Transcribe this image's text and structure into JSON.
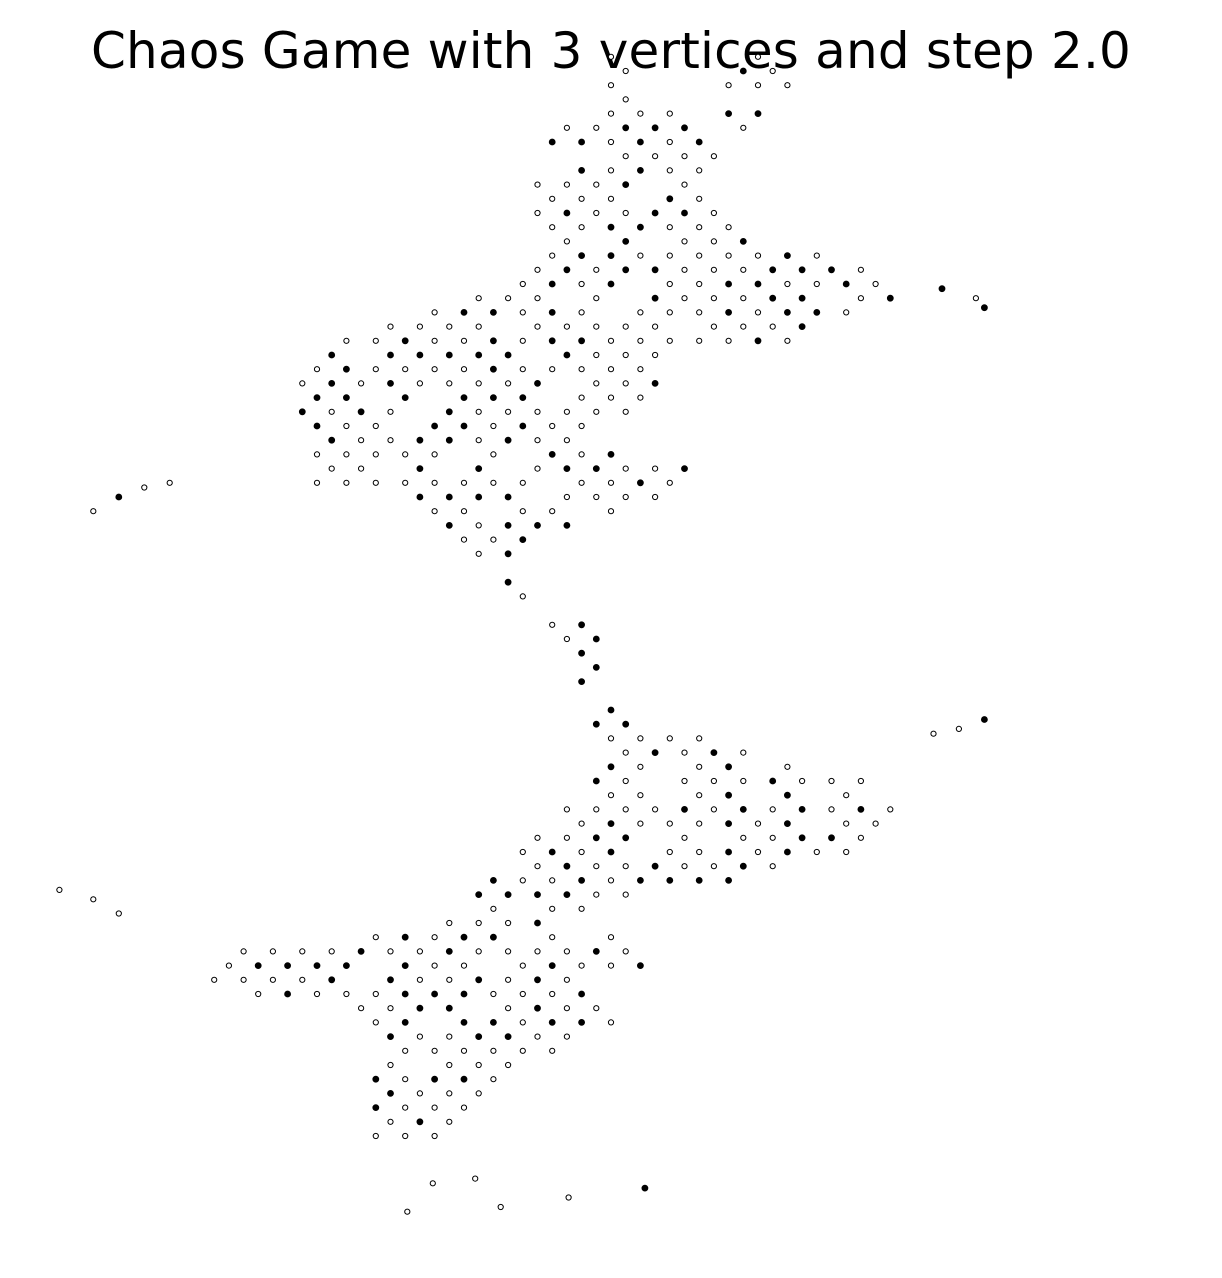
{
  "chart_data": {
    "type": "scatter",
    "title": "Chaos Game with 3 vertices and step 2.0",
    "xlabel": "",
    "ylabel": "",
    "axes_visible": false,
    "grid": false,
    "legend": "none",
    "params": {
      "vertices": 3,
      "step": 2.0
    },
    "marker": {
      "shape": "circle",
      "fill": "#ffffff",
      "edge_color": "#000000"
    },
    "xlim": [
      -3.6,
      3.6
    ],
    "ylim": [
      -6.9,
      6.6
    ],
    "lattice": {
      "origin": [
        0,
        0
      ],
      "a": [
        0.1732,
        0.0
      ],
      "b": [
        0.0866,
        0.15
      ]
    },
    "series": [
      {
        "name": "walk points",
        "shape_outline": [
          [
            0.1,
            6.05
          ],
          [
            0.1,
            5.55
          ],
          [
            0.6,
            5.25
          ],
          [
            1.0,
            5.25
          ],
          [
            1.1,
            5.75
          ],
          [
            0.95,
            6.05
          ],
          [
            0.75,
            6.0
          ],
          [
            0.6,
            5.6
          ],
          [
            0.65,
            5.2
          ],
          [
            0.6,
            4.8
          ],
          [
            0.55,
            4.45
          ],
          [
            0.7,
            4.2
          ],
          [
            1.3,
            3.9
          ],
          [
            1.75,
            3.7
          ],
          [
            1.65,
            3.35
          ],
          [
            1.2,
            3.15
          ],
          [
            0.95,
            2.9
          ],
          [
            0.6,
            2.95
          ],
          [
            0.3,
            2.8
          ],
          [
            0.35,
            2.25
          ],
          [
            0.05,
            2.25
          ],
          [
            -0.1,
            1.95
          ],
          [
            0.2,
            1.75
          ],
          [
            0.55,
            1.6
          ],
          [
            0.4,
            1.35
          ],
          [
            0.1,
            1.2
          ],
          [
            -0.35,
            0.95
          ],
          [
            -0.55,
            0.85
          ],
          [
            -0.6,
            0.55
          ],
          [
            -0.65,
            0.25
          ],
          [
            -0.3,
            0.15
          ],
          [
            0.1,
            -0.1
          ],
          [
            -0.15,
            -0.7
          ],
          [
            0.05,
            -0.95
          ],
          [
            0.45,
            -1.15
          ],
          [
            0.85,
            -1.3
          ],
          [
            1.25,
            -1.55
          ],
          [
            1.6,
            -1.7
          ],
          [
            1.7,
            -2.05
          ],
          [
            1.4,
            -2.4
          ],
          [
            1.2,
            -2.65
          ],
          [
            0.85,
            -2.7
          ],
          [
            0.45,
            -2.75
          ],
          [
            0.1,
            -2.85
          ],
          [
            -0.2,
            -3.1
          ],
          [
            0.15,
            -3.3
          ],
          [
            0.2,
            -3.7
          ],
          [
            -0.1,
            -3.75
          ],
          [
            0.05,
            -4.25
          ],
          [
            -0.1,
            -4.55
          ],
          [
            -0.4,
            -4.5
          ],
          [
            -0.55,
            -4.75
          ],
          [
            -0.7,
            -5.1
          ],
          [
            -0.95,
            -5.4
          ],
          [
            -1.2,
            -5.5
          ],
          [
            -1.45,
            -5.4
          ],
          [
            -1.4,
            -4.8
          ],
          [
            -1.35,
            -4.35
          ],
          [
            -1.5,
            -4.0
          ],
          [
            -1.9,
            -3.95
          ],
          [
            -2.25,
            -3.95
          ],
          [
            -2.4,
            -3.7
          ],
          [
            -2.2,
            -3.45
          ],
          [
            -1.85,
            -3.3
          ],
          [
            -1.55,
            -3.35
          ],
          [
            -1.1,
            -3.15
          ],
          [
            -0.8,
            -2.8
          ],
          [
            -0.7,
            -2.5
          ],
          [
            -0.5,
            -2.2
          ],
          [
            -0.25,
            -1.85
          ],
          [
            -0.05,
            -1.55
          ],
          [
            -0.05,
            -1.15
          ],
          [
            -0.2,
            -0.75
          ],
          [
            -0.2,
            -0.35
          ],
          [
            -0.4,
            -0.1
          ],
          [
            -0.45,
            0.45
          ],
          [
            -0.85,
            0.7
          ],
          [
            -1.05,
            1.0
          ],
          [
            -1.25,
            1.35
          ],
          [
            -1.5,
            1.45
          ],
          [
            -1.75,
            1.5
          ],
          [
            -1.8,
            2.0
          ],
          [
            -1.9,
            2.3
          ],
          [
            -1.85,
            2.8
          ],
          [
            -1.55,
            3.1
          ],
          [
            -1.1,
            3.3
          ],
          [
            -0.7,
            3.5
          ],
          [
            -0.45,
            3.75
          ],
          [
            -0.35,
            4.0
          ],
          [
            -0.5,
            4.2
          ],
          [
            -0.45,
            4.6
          ],
          [
            -0.4,
            5.0
          ],
          [
            -0.25,
            5.3
          ],
          [
            -0.05,
            5.55
          ],
          [
            -0.1,
            6.0
          ],
          [
            0.1,
            6.05
          ]
        ],
        "outlier_points": [
          [
            2.15,
            3.45
          ],
          [
            2.2,
            3.35
          ],
          [
            1.95,
            3.55
          ],
          [
            -2.9,
            1.35
          ],
          [
            -2.75,
            1.45
          ],
          [
            -2.6,
            1.5
          ],
          [
            -3.05,
            1.2
          ],
          [
            2.2,
            -1.0
          ],
          [
            2.05,
            -1.1
          ],
          [
            1.9,
            -1.15
          ],
          [
            -3.25,
            -2.8
          ],
          [
            -3.05,
            -2.9
          ],
          [
            -2.9,
            -3.05
          ],
          [
            -1.2,
            -6.2
          ],
          [
            -0.65,
            -6.15
          ],
          [
            -0.25,
            -6.05
          ],
          [
            0.2,
            -5.95
          ],
          [
            -0.8,
            -5.85
          ],
          [
            -1.05,
            -5.9
          ]
        ]
      }
    ]
  }
}
